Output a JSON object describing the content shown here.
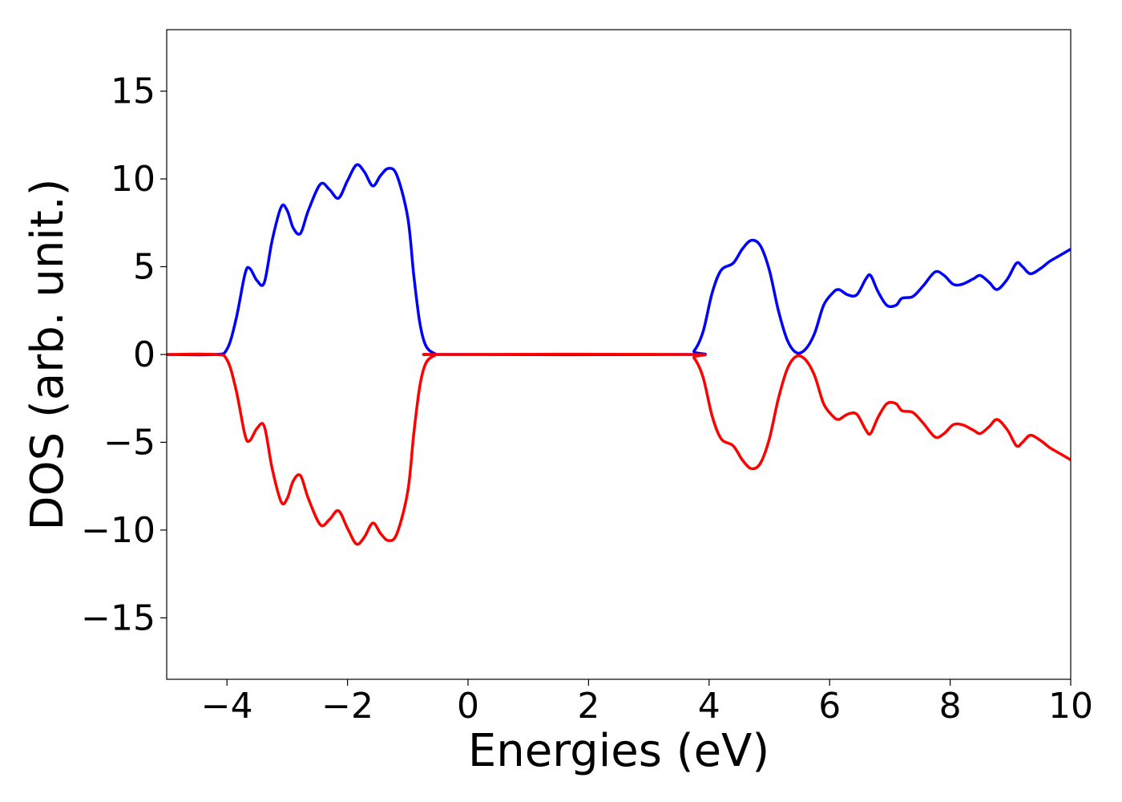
{
  "chart_data": {
    "type": "line",
    "title": "",
    "xlabel": "Energies (eV)",
    "ylabel": "DOS (arb. unit.)",
    "xlim": [
      -5,
      10
    ],
    "ylim": [
      -18.5,
      18.5
    ],
    "grid": false,
    "legend": "none",
    "x_ticks": [
      -4,
      -2,
      0,
      2,
      4,
      6,
      8,
      10
    ],
    "x_tick_labels": [
      "−4",
      "−2",
      "0",
      "2",
      "4",
      "6",
      "8",
      "10"
    ],
    "y_ticks": [
      15,
      10,
      5,
      0,
      -5,
      -10,
      -15
    ],
    "y_tick_labels": [
      "15",
      "10",
      "5",
      "0",
      "−5",
      "−10",
      "−15"
    ],
    "series": [
      {
        "color": "#0000ff",
        "points": [
          [
            -5.0,
            0
          ],
          [
            -4.2,
            0
          ],
          [
            -4.0,
            0.3
          ],
          [
            -3.85,
            2.0
          ],
          [
            -3.7,
            4.6
          ],
          [
            -3.62,
            4.9
          ],
          [
            -3.5,
            4.2
          ],
          [
            -3.38,
            4.1
          ],
          [
            -3.25,
            6.5
          ],
          [
            -3.1,
            8.4
          ],
          [
            -3.0,
            8.2
          ],
          [
            -2.9,
            7.2
          ],
          [
            -2.78,
            6.9
          ],
          [
            -2.65,
            8.2
          ],
          [
            -2.45,
            9.7
          ],
          [
            -2.3,
            9.4
          ],
          [
            -2.15,
            8.9
          ],
          [
            -2.0,
            9.9
          ],
          [
            -1.85,
            10.8
          ],
          [
            -1.72,
            10.4
          ],
          [
            -1.58,
            9.6
          ],
          [
            -1.45,
            10.2
          ],
          [
            -1.32,
            10.6
          ],
          [
            -1.18,
            10.2
          ],
          [
            -1.0,
            7.8
          ],
          [
            -0.9,
            4.5
          ],
          [
            -0.8,
            1.8
          ],
          [
            -0.7,
            0.5
          ],
          [
            -0.55,
            0.05
          ],
          [
            -0.4,
            0
          ],
          [
            3.6,
            0
          ],
          [
            3.75,
            0.2
          ],
          [
            3.9,
            1.3
          ],
          [
            4.05,
            3.5
          ],
          [
            4.2,
            4.8
          ],
          [
            4.4,
            5.2
          ],
          [
            4.55,
            6.0
          ],
          [
            4.7,
            6.5
          ],
          [
            4.85,
            6.2
          ],
          [
            5.0,
            4.8
          ],
          [
            5.15,
            2.5
          ],
          [
            5.3,
            0.8
          ],
          [
            5.45,
            0.1
          ],
          [
            5.6,
            0.3
          ],
          [
            5.75,
            1.2
          ],
          [
            5.9,
            2.8
          ],
          [
            6.05,
            3.5
          ],
          [
            6.15,
            3.7
          ],
          [
            6.3,
            3.4
          ],
          [
            6.45,
            3.4
          ],
          [
            6.6,
            4.3
          ],
          [
            6.68,
            4.5
          ],
          [
            6.8,
            3.6
          ],
          [
            6.95,
            2.8
          ],
          [
            7.1,
            2.8
          ],
          [
            7.2,
            3.2
          ],
          [
            7.38,
            3.3
          ],
          [
            7.55,
            3.9
          ],
          [
            7.75,
            4.7
          ],
          [
            7.9,
            4.5
          ],
          [
            8.05,
            4.0
          ],
          [
            8.2,
            4.0
          ],
          [
            8.38,
            4.3
          ],
          [
            8.5,
            4.5
          ],
          [
            8.65,
            4.1
          ],
          [
            8.78,
            3.7
          ],
          [
            8.95,
            4.3
          ],
          [
            9.1,
            5.2
          ],
          [
            9.2,
            5.0
          ],
          [
            9.33,
            4.6
          ],
          [
            9.5,
            4.9
          ],
          [
            9.65,
            5.3
          ],
          [
            9.8,
            5.6
          ],
          [
            10.0,
            6.0
          ]
        ]
      },
      {
        "color": "#ff0000",
        "points": [
          [
            -5.0,
            0
          ],
          [
            -4.2,
            0
          ],
          [
            -4.0,
            -0.3
          ],
          [
            -3.85,
            -2.0
          ],
          [
            -3.7,
            -4.6
          ],
          [
            -3.62,
            -4.9
          ],
          [
            -3.5,
            -4.2
          ],
          [
            -3.38,
            -4.1
          ],
          [
            -3.25,
            -6.5
          ],
          [
            -3.1,
            -8.4
          ],
          [
            -3.0,
            -8.2
          ],
          [
            -2.9,
            -7.2
          ],
          [
            -2.78,
            -6.9
          ],
          [
            -2.65,
            -8.2
          ],
          [
            -2.45,
            -9.7
          ],
          [
            -2.3,
            -9.4
          ],
          [
            -2.15,
            -8.9
          ],
          [
            -2.0,
            -9.9
          ],
          [
            -1.85,
            -10.8
          ],
          [
            -1.72,
            -10.4
          ],
          [
            -1.58,
            -9.6
          ],
          [
            -1.45,
            -10.2
          ],
          [
            -1.32,
            -10.6
          ],
          [
            -1.18,
            -10.2
          ],
          [
            -1.0,
            -7.8
          ],
          [
            -0.9,
            -4.5
          ],
          [
            -0.8,
            -1.8
          ],
          [
            -0.7,
            -0.5
          ],
          [
            -0.55,
            -0.05
          ],
          [
            -0.4,
            0
          ],
          [
            3.6,
            0
          ],
          [
            3.75,
            -0.2
          ],
          [
            3.9,
            -1.3
          ],
          [
            4.05,
            -3.5
          ],
          [
            4.2,
            -4.8
          ],
          [
            4.4,
            -5.2
          ],
          [
            4.55,
            -6.0
          ],
          [
            4.7,
            -6.5
          ],
          [
            4.85,
            -6.2
          ],
          [
            5.0,
            -4.8
          ],
          [
            5.15,
            -2.5
          ],
          [
            5.3,
            -0.8
          ],
          [
            5.45,
            -0.1
          ],
          [
            5.6,
            -0.3
          ],
          [
            5.75,
            -1.2
          ],
          [
            5.9,
            -2.8
          ],
          [
            6.05,
            -3.5
          ],
          [
            6.15,
            -3.7
          ],
          [
            6.3,
            -3.4
          ],
          [
            6.45,
            -3.4
          ],
          [
            6.6,
            -4.3
          ],
          [
            6.68,
            -4.5
          ],
          [
            6.8,
            -3.6
          ],
          [
            6.95,
            -2.8
          ],
          [
            7.1,
            -2.8
          ],
          [
            7.2,
            -3.2
          ],
          [
            7.38,
            -3.3
          ],
          [
            7.55,
            -3.9
          ],
          [
            7.75,
            -4.7
          ],
          [
            7.9,
            -4.5
          ],
          [
            8.05,
            -4.0
          ],
          [
            8.2,
            -4.0
          ],
          [
            8.38,
            -4.3
          ],
          [
            8.5,
            -4.5
          ],
          [
            8.65,
            -4.1
          ],
          [
            8.78,
            -3.7
          ],
          [
            8.95,
            -4.3
          ],
          [
            9.1,
            -5.2
          ],
          [
            9.2,
            -5.0
          ],
          [
            9.33,
            -4.6
          ],
          [
            9.5,
            -4.9
          ],
          [
            9.65,
            -5.3
          ],
          [
            9.8,
            -5.6
          ],
          [
            10.0,
            -6.0
          ]
        ]
      }
    ]
  }
}
